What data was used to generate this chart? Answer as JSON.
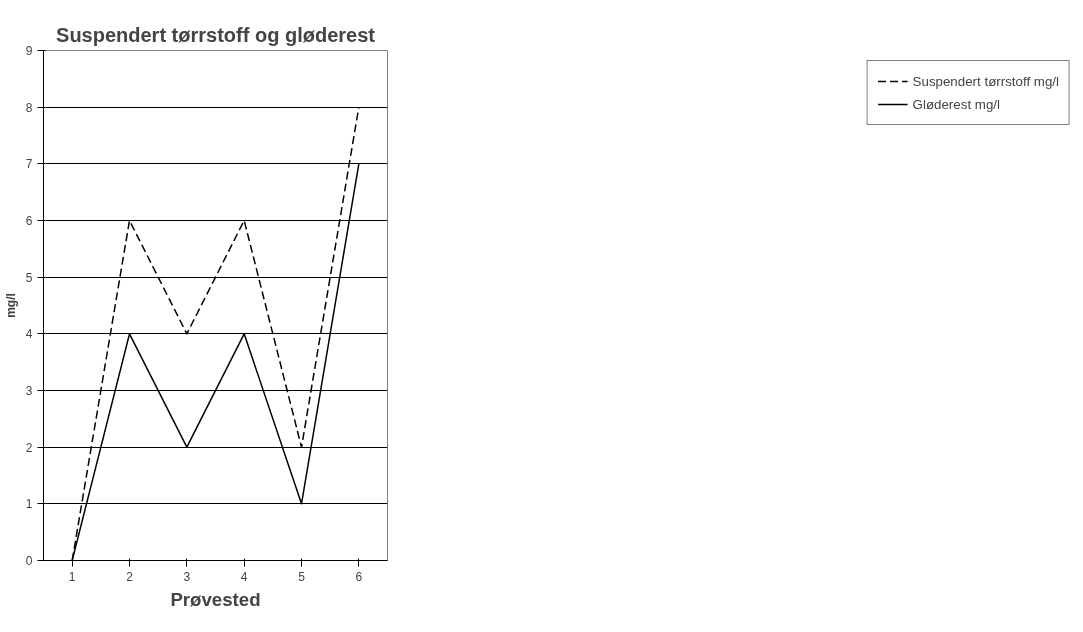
{
  "chart_data": {
    "type": "line",
    "title": "Suspendert tørrstoff og gløderest",
    "xlabel": "Prøvested",
    "ylabel": "mg/l",
    "categories": [
      "1",
      "2",
      "3",
      "4",
      "5",
      "6"
    ],
    "series": [
      {
        "name": "Suspendert tørrstoff mg/l",
        "color": "#000000",
        "line_style": "dashed",
        "values": [
          0,
          6,
          4,
          6,
          2,
          8
        ]
      },
      {
        "name": "Gløderest mg/l",
        "color": "#000000",
        "line_style": "solid",
        "values": [
          0,
          4,
          2,
          4,
          1,
          7
        ]
      }
    ],
    "ylim": [
      0,
      9
    ],
    "yticks": [
      0,
      1,
      2,
      3,
      4,
      5,
      6,
      7,
      8,
      9
    ],
    "grid": "y",
    "legend": "right",
    "marker": "none"
  }
}
